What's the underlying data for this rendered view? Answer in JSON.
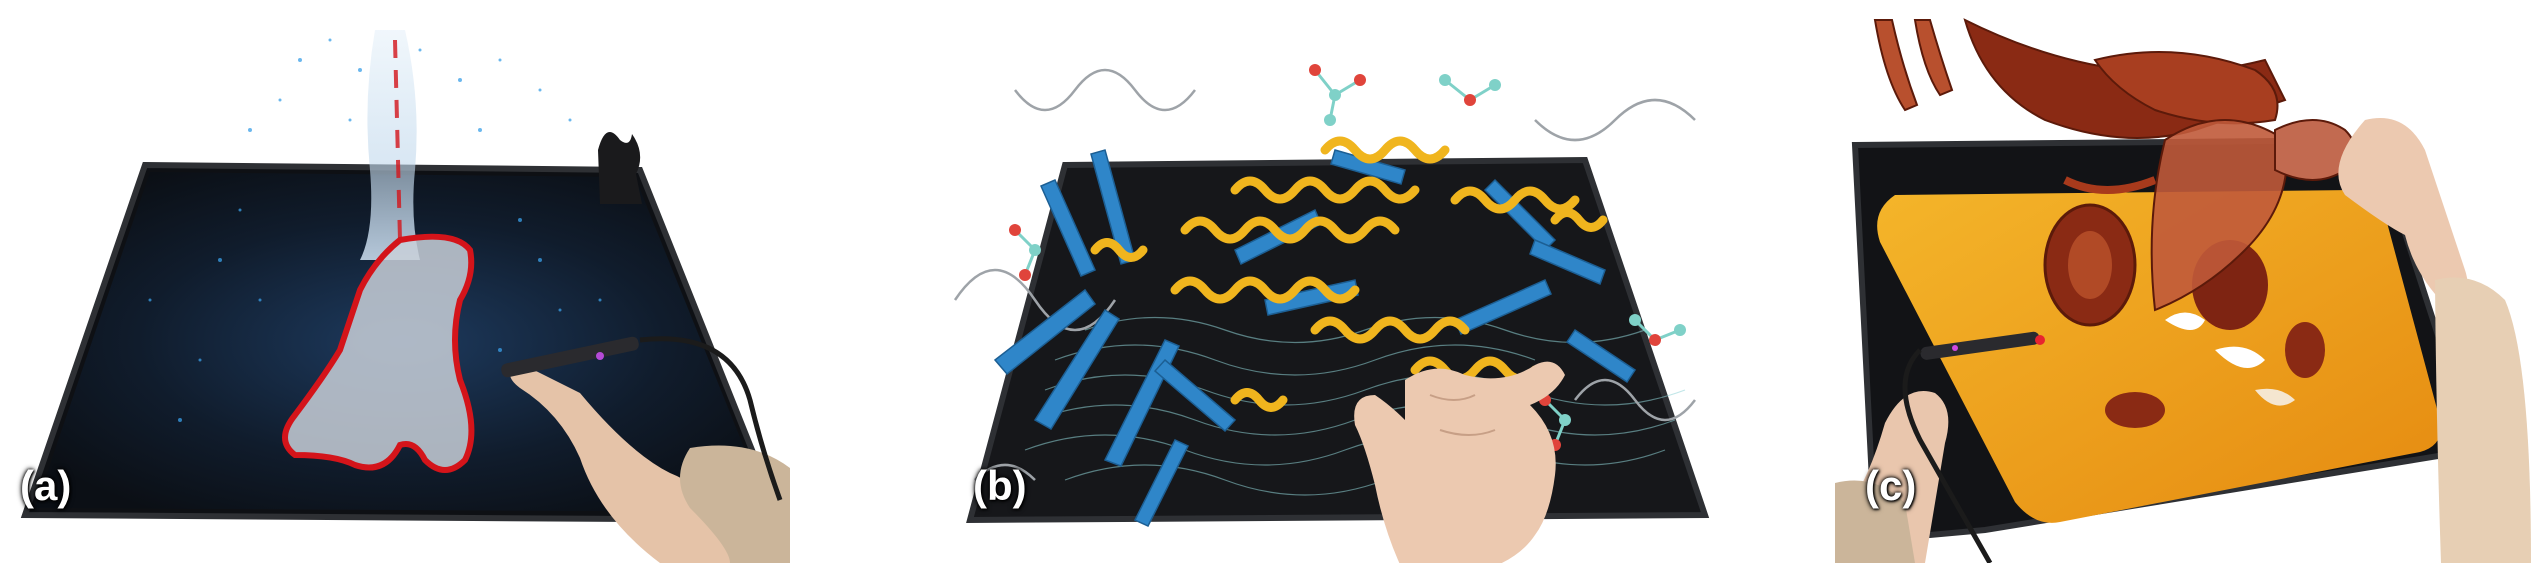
{
  "panels": [
    {
      "label": "(a)",
      "content": "point-cloud-selection"
    },
    {
      "label": "(b)",
      "content": "molecular-structure"
    },
    {
      "label": "(c)",
      "content": "volumetric-slicing"
    }
  ],
  "colors": {
    "tablet": "#161719",
    "tablet_edge": "#2e3034",
    "point_cloud": "#3aa0e8",
    "selection_lasso": "#d4141a",
    "helix": "#f0b51e",
    "sheet": "#2f86c9",
    "slice": "#f0a418",
    "organ": "#8a2a14",
    "skin": "#e9c6ad"
  }
}
